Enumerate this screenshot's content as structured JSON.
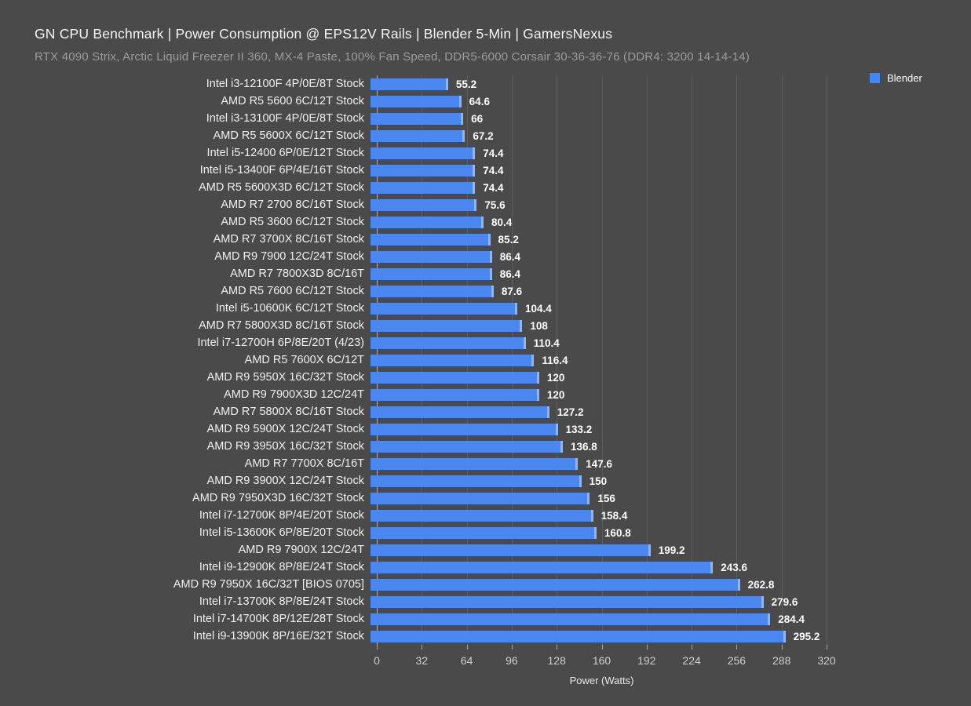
{
  "header": {
    "title": "GN CPU Benchmark | Power Consumption @ EPS12V Rails | Blender 5-Min | GamersNexus",
    "subtitle": "RTX 4090 Strix, Arctic Liquid Freezer II 360, MX-4 Paste, 100% Fan Speed, DDR5-6000 Corsair 30-36-36-76 (DDR4: 3200 14-14-14)"
  },
  "colors": {
    "background": "#4a4a4a",
    "bar": "#4b87f0",
    "bar_edge_highlight": "#8fb5f7",
    "legend_swatch": "#4285f4",
    "gridline": "#5d5d5d",
    "axis_line": "#b3b3b3",
    "title_text": "#f5f5f5",
    "subtitle_text": "#9c9c9c",
    "value_text": "#ffffff"
  },
  "chart_data": {
    "type": "bar",
    "orientation": "horizontal",
    "title": "GN CPU Benchmark | Power Consumption @ EPS12V Rails | Blender 5-Min | GamersNexus",
    "subtitle": "RTX 4090 Strix, Arctic Liquid Freezer II 360, MX-4 Paste, 100% Fan Speed, DDR5-6000 Corsair 30-36-36-76 (DDR4: 3200 14-14-14)",
    "legend": {
      "label": "Blender",
      "color": "#4285f4",
      "position": "top-right"
    },
    "xlabel": "Power (Watts)",
    "ylabel": "",
    "xlim": [
      0,
      320
    ],
    "xticks": [
      0,
      32,
      64,
      96,
      128,
      160,
      192,
      224,
      256,
      288,
      320
    ],
    "grid": true,
    "series_name": "Blender",
    "categories": [
      "Intel i3-12100F 4P/0E/8T Stock",
      "AMD R5 5600 6C/12T Stock",
      "Intel i3-13100F 4P/0E/8T Stock",
      "AMD R5 5600X 6C/12T Stock",
      "Intel i5-12400 6P/0E/12T Stock",
      "Intel i5-13400F 6P/4E/16T Stock",
      "AMD R5 5600X3D 6C/12T Stock",
      "AMD R7 2700 8C/16T Stock",
      "AMD R5 3600 6C/12T Stock",
      "AMD R7 3700X 8C/16T Stock",
      "AMD R9 7900 12C/24T Stock",
      "AMD R7 7800X3D 8C/16T",
      "AMD R5 7600 6C/12T Stock",
      "Intel i5-10600K 6C/12T Stock",
      "AMD R7 5800X3D 8C/16T Stock",
      "Intel i7-12700H 6P/8E/20T (4/23)",
      "AMD R5 7600X 6C/12T",
      "AMD R9 5950X 16C/32T Stock",
      "AMD R9 7900X3D 12C/24T",
      "AMD R7 5800X 8C/16T Stock",
      "AMD R9 5900X 12C/24T Stock",
      "AMD R9 3950X 16C/32T Stock",
      "AMD R7 7700X 8C/16T",
      "AMD R9 3900X 12C/24T Stock",
      "AMD R9 7950X3D 16C/32T Stock",
      "Intel i7-12700K 8P/4E/20T Stock",
      "Intel i5-13600K 6P/8E/20T Stock",
      "AMD R9 7900X 12C/24T",
      "Intel i9-12900K 8P/8E/24T Stock",
      "AMD R9 7950X 16C/32T [BIOS 0705]",
      "Intel i7-13700K 8P/8E/24T Stock",
      "Intel i7-14700K 8P/12E/28T Stock",
      "Intel i9-13900K 8P/16E/32T Stock"
    ],
    "values": [
      55.2,
      64.6,
      66,
      67.2,
      74.4,
      74.4,
      74.4,
      75.6,
      80.4,
      85.2,
      86.4,
      86.4,
      87.6,
      104.4,
      108,
      110.4,
      116.4,
      120,
      120,
      127.2,
      133.2,
      136.8,
      147.6,
      150,
      156,
      158.4,
      160.8,
      199.2,
      243.6,
      262.8,
      279.6,
      284.4,
      295.2
    ]
  }
}
